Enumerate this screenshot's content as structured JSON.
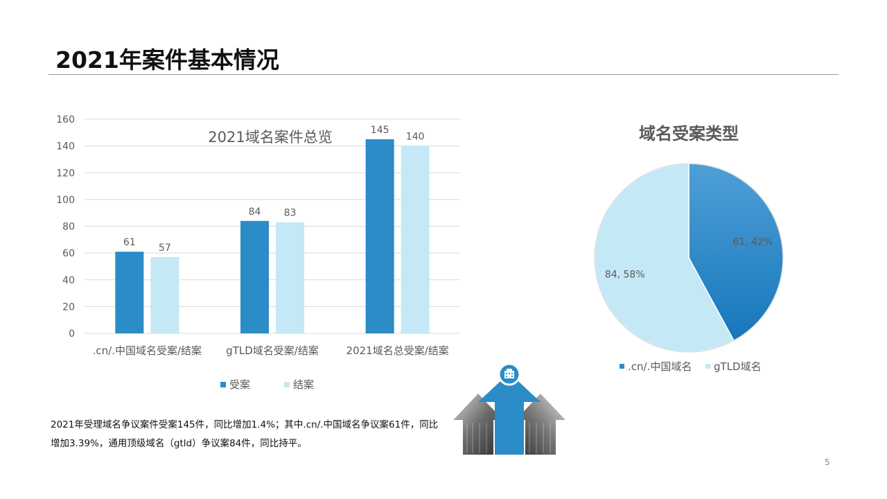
{
  "slide": {
    "title": "2021年案件基本情况",
    "page_number": "5",
    "summary": "2021年受理域名争议案件受案145件，同比增加1.4%；其中.cn/.中国域名争议案61件，同比增加3.39%，通用顶级域名（gtld）争议案84件，同比持平。"
  },
  "colors": {
    "dark_blue": "#2B8CC8",
    "light_blue": "#C5E8F6",
    "grid": "#D9D9D9",
    "axis_text": "#595959"
  },
  "icons": {
    "arrow_badge": "building-icon"
  },
  "chart_data": [
    {
      "type": "bar",
      "title": "2021域名案件总览",
      "categories": [
        ".cn/.中国域名受案/结案",
        "gTLD域名受案/结案",
        "2021域名总受案/结案"
      ],
      "series": [
        {
          "name": "受案",
          "values": [
            61,
            84,
            145
          ],
          "color": "#2B8CC8"
        },
        {
          "name": "结案",
          "values": [
            57,
            83,
            140
          ],
          "color": "#C5E8F6"
        }
      ],
      "ylim": [
        0,
        160
      ],
      "yticks": [
        0,
        20,
        40,
        60,
        80,
        100,
        120,
        140,
        160
      ],
      "grid": true,
      "legend": "bottom"
    },
    {
      "type": "pie",
      "title": "域名受案类型",
      "labels": [
        ".cn/.中国域名",
        "gTLD域名"
      ],
      "values": [
        61,
        84
      ],
      "percentages": [
        42,
        58
      ],
      "data_labels": [
        "61, 42%",
        "84, 58%"
      ],
      "colors": [
        "#2B8CC8",
        "#C5E8F6"
      ],
      "legend": "bottom"
    }
  ]
}
